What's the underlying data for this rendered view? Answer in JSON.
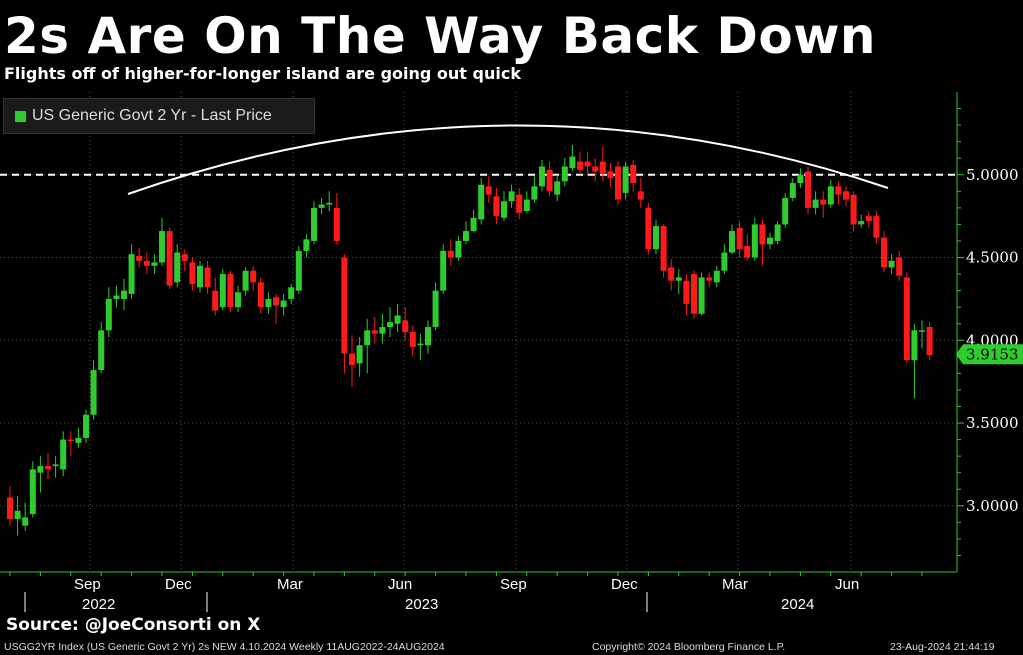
{
  "header": {
    "title": "2s Are On The Way Back Down",
    "subtitle": "Flights off of higher-for-longer island are going out quick"
  },
  "source": "Source: @JoeConsorti on X",
  "footer": {
    "index": "USGG2YR Index (US Generic Govt 2 Yr) 2s NEW 4.10.2024  Weekly 11AUG2022-24AUG2024",
    "copyright": "Copyright© 2024 Bloomberg Finance L.P.",
    "timestamp": "23-Aug-2024 21:44:19"
  },
  "colors": {
    "up": "#2ecc2e",
    "down": "#ff1a1a",
    "grid": "#555555",
    "axis": "#2ecc2e",
    "last_price_bg": "#2ecc2e"
  },
  "chart_data": {
    "type": "candlestick",
    "series_name": "US Generic Govt 2 Yr - Last Price",
    "last_price": 3.9153,
    "last_price_label": "3.9153",
    "reference_line": 5.0,
    "ylim": [
      2.6,
      5.5
    ],
    "yticks": [
      3.0,
      3.5,
      4.0,
      4.5,
      5.0
    ],
    "ytick_labels": [
      "3.0000",
      "3.5000",
      "4.0000",
      "4.5000",
      "5.0000"
    ],
    "xtick_labels": [
      "Sep",
      "Dec",
      "Mar",
      "Jun",
      "Sep",
      "Dec",
      "Mar",
      "Jun"
    ],
    "year_labels": [
      "2022",
      "2023",
      "2024"
    ],
    "grid": true,
    "legend_position": "top-left",
    "candles": [
      [
        3.05,
        2.92,
        3.12,
        2.88
      ],
      [
        2.92,
        2.97,
        3.06,
        2.82
      ],
      [
        2.88,
        2.93,
        3.02,
        2.85
      ],
      [
        2.95,
        3.22,
        3.27,
        2.93
      ],
      [
        3.2,
        3.24,
        3.3,
        3.08
      ],
      [
        3.24,
        3.22,
        3.32,
        3.16
      ],
      [
        3.24,
        3.25,
        3.3,
        3.17
      ],
      [
        3.22,
        3.4,
        3.45,
        3.18
      ],
      [
        3.4,
        3.39,
        3.45,
        3.3
      ],
      [
        3.38,
        3.41,
        3.47,
        3.35
      ],
      [
        3.41,
        3.55,
        3.58,
        3.38
      ],
      [
        3.55,
        3.82,
        3.88,
        3.52
      ],
      [
        3.82,
        4.06,
        4.11,
        3.8
      ],
      [
        4.06,
        4.25,
        4.32,
        4.02
      ],
      [
        4.25,
        4.27,
        4.33,
        4.2
      ],
      [
        4.25,
        4.3,
        4.37,
        4.18
      ],
      [
        4.28,
        4.52,
        4.58,
        4.25
      ],
      [
        4.51,
        4.48,
        4.56,
        4.44
      ],
      [
        4.48,
        4.45,
        4.53,
        4.4
      ],
      [
        4.45,
        4.47,
        4.52,
        4.4
      ],
      [
        4.47,
        4.66,
        4.74,
        4.45
      ],
      [
        4.66,
        4.33,
        4.68,
        4.31
      ],
      [
        4.35,
        4.53,
        4.58,
        4.32
      ],
      [
        4.52,
        4.48,
        4.55,
        4.42
      ],
      [
        4.47,
        4.34,
        4.5,
        4.3
      ],
      [
        4.32,
        4.45,
        4.48,
        4.29
      ],
      [
        4.44,
        4.32,
        4.48,
        4.28
      ],
      [
        4.3,
        4.18,
        4.38,
        4.15
      ],
      [
        4.2,
        4.4,
        4.43,
        4.18
      ],
      [
        4.4,
        4.2,
        4.42,
        4.17
      ],
      [
        4.2,
        4.29,
        4.33,
        4.17
      ],
      [
        4.3,
        4.42,
        4.44,
        4.27
      ],
      [
        4.42,
        4.35,
        4.45,
        4.3
      ],
      [
        4.35,
        4.2,
        4.38,
        4.16
      ],
      [
        4.2,
        4.25,
        4.29,
        4.16
      ],
      [
        4.26,
        4.21,
        4.28,
        4.1
      ],
      [
        4.2,
        4.24,
        4.28,
        4.15
      ],
      [
        4.25,
        4.32,
        4.34,
        4.22
      ],
      [
        4.3,
        4.54,
        4.57,
        4.28
      ],
      [
        4.54,
        4.61,
        4.64,
        4.5
      ],
      [
        4.6,
        4.8,
        4.84,
        4.58
      ],
      [
        4.8,
        4.82,
        4.86,
        4.76
      ],
      [
        4.82,
        4.83,
        4.9,
        4.78
      ],
      [
        4.8,
        4.6,
        4.89,
        4.58
      ],
      [
        4.5,
        3.92,
        4.52,
        3.8
      ],
      [
        3.92,
        3.85,
        4.03,
        3.72
      ],
      [
        3.86,
        3.97,
        4.02,
        3.78
      ],
      [
        3.97,
        4.06,
        4.13,
        3.8
      ],
      [
        4.06,
        4.04,
        4.14,
        3.98
      ],
      [
        4.04,
        4.08,
        4.16,
        3.98
      ],
      [
        4.08,
        4.11,
        4.2,
        4.02
      ],
      [
        4.1,
        4.15,
        4.22,
        4.05
      ],
      [
        4.12,
        4.05,
        4.2,
        4.0
      ],
      [
        4.05,
        3.96,
        4.09,
        3.9
      ],
      [
        3.97,
        3.98,
        4.04,
        3.88
      ],
      [
        3.97,
        4.08,
        4.12,
        3.92
      ],
      [
        4.08,
        4.3,
        4.35,
        4.06
      ],
      [
        4.3,
        4.54,
        4.58,
        4.28
      ],
      [
        4.54,
        4.5,
        4.61,
        4.45
      ],
      [
        4.5,
        4.6,
        4.63,
        4.48
      ],
      [
        4.6,
        4.66,
        4.72,
        4.58
      ],
      [
        4.66,
        4.74,
        4.79,
        4.65
      ],
      [
        4.73,
        4.94,
        4.98,
        4.7
      ],
      [
        4.93,
        4.88,
        4.99,
        4.83
      ],
      [
        4.87,
        4.75,
        4.92,
        4.7
      ],
      [
        4.74,
        4.84,
        4.9,
        4.72
      ],
      [
        4.84,
        4.9,
        4.94,
        4.8
      ],
      [
        4.88,
        4.77,
        4.92,
        4.73
      ],
      [
        4.78,
        4.85,
        4.9,
        4.77
      ],
      [
        4.85,
        4.93,
        4.99,
        4.83
      ],
      [
        4.93,
        5.05,
        5.09,
        4.9
      ],
      [
        5.03,
        4.9,
        5.08,
        4.87
      ],
      [
        4.88,
        4.96,
        5.0,
        4.84
      ],
      [
        4.96,
        5.05,
        5.1,
        4.93
      ],
      [
        5.04,
        5.11,
        5.18,
        5.02
      ],
      [
        5.08,
        5.03,
        5.14,
        5.0
      ],
      [
        5.08,
        5.05,
        5.14,
        4.99
      ],
      [
        5.05,
        5.02,
        5.1,
        4.96
      ],
      [
        5.08,
        5.01,
        5.17,
        4.96
      ],
      [
        5.02,
        4.98,
        5.07,
        4.93
      ],
      [
        5.05,
        4.85,
        5.08,
        4.82
      ],
      [
        4.89,
        5.05,
        5.08,
        4.85
      ],
      [
        5.06,
        4.95,
        5.09,
        4.9
      ],
      [
        4.9,
        4.85,
        4.98,
        4.8
      ],
      [
        4.8,
        4.55,
        4.83,
        4.52
      ],
      [
        4.55,
        4.69,
        4.73,
        4.52
      ],
      [
        4.69,
        4.42,
        4.7,
        4.38
      ],
      [
        4.44,
        4.36,
        4.49,
        4.3
      ],
      [
        4.36,
        4.38,
        4.43,
        4.28
      ],
      [
        4.36,
        4.22,
        4.4,
        4.15
      ],
      [
        4.4,
        4.16,
        4.42,
        4.13
      ],
      [
        4.16,
        4.38,
        4.41,
        4.15
      ],
      [
        4.38,
        4.36,
        4.41,
        4.32
      ],
      [
        4.35,
        4.42,
        4.45,
        4.32
      ],
      [
        4.42,
        4.53,
        4.58,
        4.4
      ],
      [
        4.53,
        4.66,
        4.7,
        4.52
      ],
      [
        4.68,
        4.55,
        4.72,
        4.5
      ],
      [
        4.57,
        4.5,
        4.64,
        4.48
      ],
      [
        4.5,
        4.7,
        4.74,
        4.48
      ],
      [
        4.7,
        4.58,
        4.73,
        4.45
      ],
      [
        4.58,
        4.62,
        4.65,
        4.55
      ],
      [
        4.6,
        4.7,
        4.72,
        4.58
      ],
      [
        4.7,
        4.86,
        4.89,
        4.68
      ],
      [
        4.86,
        4.95,
        4.98,
        4.84
      ],
      [
        4.95,
        5.0,
        5.04,
        4.92
      ],
      [
        5.02,
        4.8,
        5.05,
        4.76
      ],
      [
        4.8,
        4.85,
        4.9,
        4.76
      ],
      [
        4.85,
        4.82,
        4.9,
        4.74
      ],
      [
        4.82,
        4.93,
        4.97,
        4.8
      ],
      [
        4.93,
        4.88,
        4.96,
        4.82
      ],
      [
        4.9,
        4.85,
        4.93,
        4.81
      ],
      [
        4.88,
        4.7,
        4.9,
        4.66
      ],
      [
        4.7,
        4.72,
        4.76,
        4.68
      ],
      [
        4.75,
        4.72,
        4.78,
        4.68
      ],
      [
        4.75,
        4.62,
        4.78,
        4.58
      ],
      [
        4.62,
        4.44,
        4.66,
        4.41
      ],
      [
        4.44,
        4.48,
        4.52,
        4.4
      ],
      [
        4.5,
        4.39,
        4.54,
        4.36
      ],
      [
        4.38,
        3.88,
        4.41,
        3.86
      ],
      [
        3.88,
        4.06,
        4.1,
        3.65
      ],
      [
        4.06,
        4.06,
        4.12,
        3.95
      ],
      [
        4.08,
        3.91,
        4.11,
        3.88
      ]
    ]
  }
}
